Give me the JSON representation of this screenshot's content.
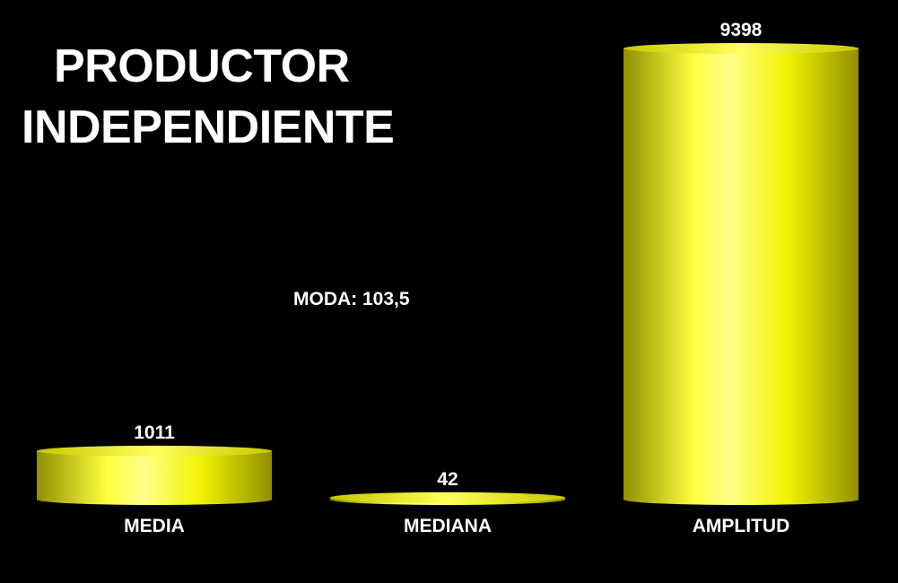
{
  "chart_data": {
    "type": "bar",
    "title_lines": [
      "PRODUCTOR",
      "INDEPENDIENTE"
    ],
    "categories": [
      "MEDIA",
      "MEDIANA",
      "AMPLITUD"
    ],
    "values": [
      1011,
      42,
      9398
    ],
    "value_labels": [
      "1011",
      "42",
      "9398"
    ],
    "annotation": "MODA: 103,5",
    "ylim": [
      0,
      9398
    ],
    "grid": false,
    "bar_style": "3d-cylinder",
    "colors": {
      "background": "#000000",
      "bar": "#ffff00",
      "bar_shade": "#a6a600",
      "text": "#ffffff"
    }
  }
}
